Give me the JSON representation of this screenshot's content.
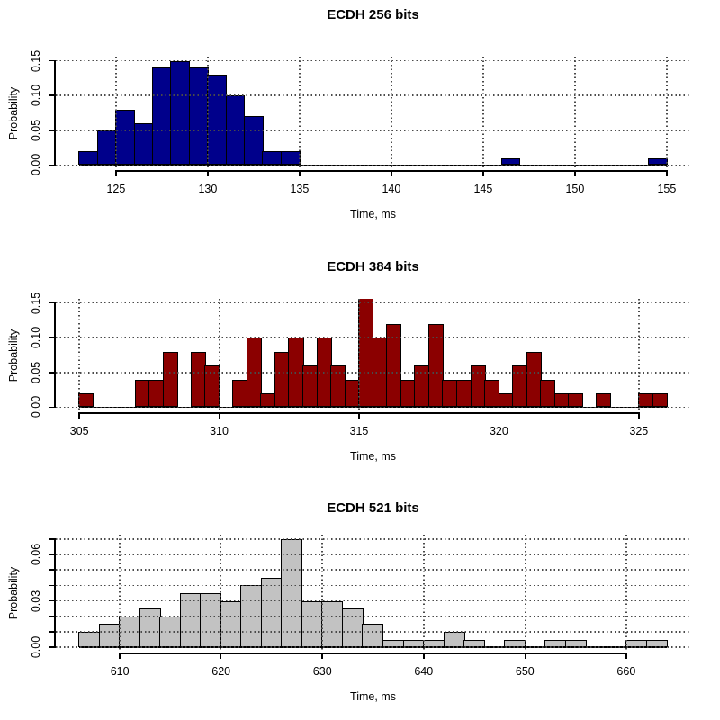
{
  "figure": {
    "background": "#ffffff",
    "grid_color": "#4a4a4a",
    "axis_color": "#000000"
  },
  "chart_data": [
    {
      "type": "bar",
      "subtype": "histogram",
      "title": "ECDH 256 bits",
      "xlabel": "Time, ms",
      "ylabel": "Probability",
      "bar_color": "#00008B",
      "bar_border_color": "#000000",
      "bin_start": 123,
      "bin_width": 1,
      "values": [
        0.02,
        0.05,
        0.08,
        0.06,
        0.14,
        0.15,
        0.14,
        0.13,
        0.1,
        0.07,
        0.02,
        0.02,
        0,
        0,
        0,
        0,
        0,
        0,
        0,
        0,
        0,
        0,
        0,
        0.01,
        0,
        0,
        0,
        0,
        0,
        0,
        0,
        0.01
      ],
      "xlim": [
        121.72,
        156.28
      ],
      "ylim": [
        -0.006,
        0.156
      ],
      "x_ticks": [
        {
          "v": 125,
          "label": "125"
        },
        {
          "v": 130,
          "label": "130"
        },
        {
          "v": 135,
          "label": "135"
        },
        {
          "v": 140,
          "label": "140"
        },
        {
          "v": 145,
          "label": "145"
        },
        {
          "v": 150,
          "label": "150"
        },
        {
          "v": 155,
          "label": "155"
        }
      ],
      "y_ticks": [
        {
          "v": 0,
          "label": "0.00"
        },
        {
          "v": 0.05,
          "label": "0.05"
        },
        {
          "v": 0.1,
          "label": "0.10"
        },
        {
          "v": 0.15,
          "label": "0.15"
        }
      ],
      "grid_y": [
        0,
        0.05,
        0.1,
        0.15
      ],
      "x_axis_span": [
        125,
        155
      ],
      "y_axis_span": [
        0,
        0.15
      ],
      "baseline_span": [
        123,
        155
      ],
      "grid": "dotted"
    },
    {
      "type": "bar",
      "subtype": "histogram",
      "title": "ECDH 384 bits",
      "xlabel": "Time, ms",
      "ylabel": "Probability",
      "bar_color": "#8B0000",
      "bar_border_color": "#000000",
      "bin_start": 305,
      "bin_width": 0.5,
      "values": [
        0.02,
        0,
        0,
        0,
        0.04,
        0.04,
        0.08,
        0,
        0.08,
        0.06,
        0,
        0.04,
        0.1,
        0.02,
        0.08,
        0.1,
        0.06,
        0.1,
        0.06,
        0.04,
        0.16,
        0.1,
        0.12,
        0.04,
        0.06,
        0.12,
        0.04,
        0.04,
        0.06,
        0.04,
        0.02,
        0.06,
        0.08,
        0.04,
        0.02,
        0.02,
        0,
        0.02,
        0,
        0,
        0.02,
        0.02
      ],
      "xlim": [
        304.16,
        326.84
      ],
      "ylim": [
        -0.006,
        0.156
      ],
      "x_ticks": [
        {
          "v": 305,
          "label": "305"
        },
        {
          "v": 310,
          "label": "310"
        },
        {
          "v": 315,
          "label": "315"
        },
        {
          "v": 320,
          "label": "320"
        },
        {
          "v": 325,
          "label": "325"
        }
      ],
      "y_ticks": [
        {
          "v": 0,
          "label": "0.00"
        },
        {
          "v": 0.05,
          "label": "0.05"
        },
        {
          "v": 0.1,
          "label": "0.10"
        },
        {
          "v": 0.15,
          "label": "0.15"
        }
      ],
      "grid_y": [
        0,
        0.05,
        0.1,
        0.15
      ],
      "x_axis_span": [
        305,
        325
      ],
      "y_axis_span": [
        0,
        0.15
      ],
      "baseline_span": [
        305,
        326
      ],
      "grid": "dotted"
    },
    {
      "type": "bar",
      "subtype": "histogram",
      "title": "ECDH 521 bits",
      "xlabel": "Time, ms",
      "ylabel": "Probability",
      "bar_color": "#C2C2C2",
      "bar_border_color": "#000000",
      "bin_start": 606,
      "bin_width": 2,
      "values": [
        0.01,
        0.015,
        0.02,
        0.025,
        0.02,
        0.035,
        0.035,
        0.03,
        0.04,
        0.045,
        0.07,
        0.03,
        0.03,
        0.025,
        0.015,
        0.005,
        0.005,
        0.005,
        0.01,
        0.005,
        0,
        0.005,
        0,
        0.005,
        0.005,
        0,
        0,
        0.005,
        0.005
      ],
      "xlim": [
        603.68,
        666.32
      ],
      "ylim": [
        -0.0028,
        0.0728
      ],
      "x_ticks": [
        {
          "v": 610,
          "label": "610"
        },
        {
          "v": 620,
          "label": "620"
        },
        {
          "v": 630,
          "label": "630"
        },
        {
          "v": 640,
          "label": "640"
        },
        {
          "v": 650,
          "label": "650"
        },
        {
          "v": 660,
          "label": "660"
        }
      ],
      "y_ticks": [
        {
          "v": 0,
          "label": "0.00"
        },
        {
          "v": 0.01,
          "label": ""
        },
        {
          "v": 0.02,
          "label": ""
        },
        {
          "v": 0.03,
          "label": "0.03"
        },
        {
          "v": 0.04,
          "label": ""
        },
        {
          "v": 0.05,
          "label": ""
        },
        {
          "v": 0.06,
          "label": "0.06"
        },
        {
          "v": 0.07,
          "label": ""
        }
      ],
      "grid_y": [
        0,
        0.01,
        0.02,
        0.03,
        0.04,
        0.05,
        0.06,
        0.07
      ],
      "x_axis_span": [
        610,
        660
      ],
      "y_axis_span": [
        0,
        0.07
      ],
      "baseline_span": [
        606,
        664
      ],
      "grid": "dotted"
    }
  ]
}
